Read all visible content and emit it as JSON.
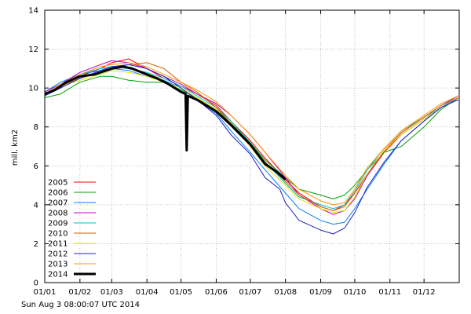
{
  "footer": {
    "timestamp": "Sun Aug  3 08:00:07 UTC 2014"
  },
  "chart_data": {
    "type": "line",
    "ylabel": "mill. km2",
    "xlabel": "",
    "title": "",
    "x_ticks": [
      "01/01",
      "01/02",
      "01/03",
      "01/04",
      "01/05",
      "01/06",
      "01/07",
      "01/08",
      "01/09",
      "01/10",
      "01/11",
      "01/12"
    ],
    "x_tick_days": [
      1,
      32,
      60,
      91,
      121,
      152,
      182,
      213,
      244,
      274,
      305,
      335
    ],
    "xlim": [
      1,
      366
    ],
    "ylim": [
      0,
      14
    ],
    "y_ticks": [
      0,
      2,
      4,
      6,
      8,
      10,
      12,
      14
    ],
    "grid": true,
    "legend_position": "bottom-left",
    "series": [
      {
        "name": "2005",
        "color": "#ff0000",
        "points": [
          [
            1,
            9.7
          ],
          [
            15,
            10.1
          ],
          [
            32,
            10.6
          ],
          [
            50,
            11.0
          ],
          [
            60,
            11.3
          ],
          [
            75,
            11.5
          ],
          [
            91,
            11.0
          ],
          [
            106,
            10.5
          ],
          [
            121,
            10.1
          ],
          [
            135,
            9.7
          ],
          [
            152,
            9.1
          ],
          [
            165,
            8.3
          ],
          [
            182,
            7.3
          ],
          [
            195,
            6.4
          ],
          [
            213,
            5.3
          ],
          [
            225,
            4.6
          ],
          [
            244,
            3.9
          ],
          [
            255,
            3.7
          ],
          [
            265,
            4.0
          ],
          [
            274,
            4.6
          ],
          [
            285,
            5.5
          ],
          [
            300,
            6.7
          ],
          [
            315,
            7.6
          ],
          [
            335,
            8.4
          ],
          [
            350,
            9.0
          ],
          [
            365,
            9.4
          ]
        ]
      },
      {
        "name": "2006",
        "color": "#00a000",
        "points": [
          [
            1,
            9.5
          ],
          [
            15,
            9.7
          ],
          [
            32,
            10.3
          ],
          [
            50,
            10.6
          ],
          [
            60,
            10.6
          ],
          [
            75,
            10.4
          ],
          [
            91,
            10.3
          ],
          [
            106,
            10.3
          ],
          [
            121,
            9.9
          ],
          [
            135,
            9.5
          ],
          [
            152,
            8.9
          ],
          [
            165,
            8.2
          ],
          [
            182,
            7.2
          ],
          [
            195,
            6.3
          ],
          [
            213,
            5.4
          ],
          [
            225,
            4.8
          ],
          [
            244,
            4.5
          ],
          [
            255,
            4.3
          ],
          [
            265,
            4.5
          ],
          [
            274,
            5.0
          ],
          [
            285,
            5.8
          ],
          [
            300,
            6.7
          ],
          [
            315,
            7.0
          ],
          [
            335,
            8.0
          ],
          [
            350,
            8.9
          ],
          [
            365,
            9.5
          ]
        ]
      },
      {
        "name": "2007",
        "color": "#0080ff",
        "points": [
          [
            1,
            9.8
          ],
          [
            15,
            10.3
          ],
          [
            32,
            10.7
          ],
          [
            50,
            10.9
          ],
          [
            60,
            11.0
          ],
          [
            75,
            10.9
          ],
          [
            91,
            10.6
          ],
          [
            106,
            10.4
          ],
          [
            121,
            10.0
          ],
          [
            135,
            9.4
          ],
          [
            152,
            8.7
          ],
          [
            165,
            7.8
          ],
          [
            182,
            6.7
          ],
          [
            195,
            5.8
          ],
          [
            213,
            4.6
          ],
          [
            225,
            3.8
          ],
          [
            244,
            3.2
          ],
          [
            255,
            3.0
          ],
          [
            265,
            3.1
          ],
          [
            274,
            3.8
          ],
          [
            285,
            4.8
          ],
          [
            300,
            6.1
          ],
          [
            315,
            7.3
          ],
          [
            335,
            8.3
          ],
          [
            350,
            9.0
          ],
          [
            365,
            9.5
          ]
        ]
      },
      {
        "name": "2008",
        "color": "#c000c0",
        "points": [
          [
            1,
            9.8
          ],
          [
            15,
            10.2
          ],
          [
            32,
            10.8
          ],
          [
            50,
            11.2
          ],
          [
            60,
            11.4
          ],
          [
            75,
            11.3
          ],
          [
            91,
            11.0
          ],
          [
            106,
            10.6
          ],
          [
            121,
            10.2
          ],
          [
            135,
            9.7
          ],
          [
            152,
            9.2
          ],
          [
            165,
            8.6
          ],
          [
            182,
            7.6
          ],
          [
            195,
            6.7
          ],
          [
            213,
            5.4
          ],
          [
            225,
            4.5
          ],
          [
            244,
            3.8
          ],
          [
            255,
            3.5
          ],
          [
            265,
            3.7
          ],
          [
            274,
            4.3
          ],
          [
            285,
            5.5
          ],
          [
            300,
            6.8
          ],
          [
            315,
            7.7
          ],
          [
            335,
            8.5
          ],
          [
            350,
            9.1
          ],
          [
            365,
            9.6
          ]
        ]
      },
      {
        "name": "2009",
        "color": "#00c0c0",
        "points": [
          [
            1,
            9.6
          ],
          [
            15,
            10.2
          ],
          [
            32,
            10.7
          ],
          [
            50,
            11.0
          ],
          [
            60,
            11.1
          ],
          [
            75,
            11.0
          ],
          [
            91,
            10.8
          ],
          [
            106,
            10.5
          ],
          [
            121,
            10.1
          ],
          [
            135,
            9.6
          ],
          [
            152,
            9.0
          ],
          [
            165,
            8.3
          ],
          [
            182,
            7.2
          ],
          [
            195,
            6.2
          ],
          [
            213,
            5.1
          ],
          [
            225,
            4.4
          ],
          [
            244,
            4.0
          ],
          [
            255,
            3.8
          ],
          [
            265,
            4.0
          ],
          [
            274,
            4.7
          ],
          [
            285,
            5.8
          ],
          [
            300,
            6.9
          ],
          [
            315,
            7.8
          ],
          [
            335,
            8.5
          ],
          [
            350,
            9.0
          ],
          [
            365,
            9.5
          ]
        ]
      },
      {
        "name": "2010",
        "color": "#d06000",
        "points": [
          [
            1,
            9.7
          ],
          [
            15,
            10.1
          ],
          [
            32,
            10.5
          ],
          [
            50,
            10.8
          ],
          [
            60,
            11.0
          ],
          [
            75,
            11.2
          ],
          [
            91,
            11.3
          ],
          [
            106,
            11.0
          ],
          [
            121,
            10.3
          ],
          [
            135,
            9.8
          ],
          [
            152,
            9.0
          ],
          [
            165,
            8.2
          ],
          [
            182,
            7.1
          ],
          [
            195,
            6.2
          ],
          [
            213,
            5.2
          ],
          [
            225,
            4.5
          ],
          [
            244,
            3.9
          ],
          [
            255,
            3.7
          ],
          [
            265,
            3.9
          ],
          [
            274,
            4.6
          ],
          [
            285,
            5.6
          ],
          [
            300,
            6.8
          ],
          [
            315,
            7.7
          ],
          [
            335,
            8.5
          ],
          [
            350,
            9.1
          ],
          [
            365,
            9.5
          ]
        ]
      },
      {
        "name": "2011",
        "color": "#e0e000",
        "points": [
          [
            1,
            9.6
          ],
          [
            15,
            10.1
          ],
          [
            32,
            10.4
          ],
          [
            50,
            10.7
          ],
          [
            60,
            10.9
          ],
          [
            75,
            10.8
          ],
          [
            91,
            10.6
          ],
          [
            106,
            10.3
          ],
          [
            121,
            10.0
          ],
          [
            135,
            9.5
          ],
          [
            152,
            8.9
          ],
          [
            165,
            8.1
          ],
          [
            182,
            7.0
          ],
          [
            195,
            6.0
          ],
          [
            213,
            5.0
          ],
          [
            225,
            4.3
          ],
          [
            244,
            3.8
          ],
          [
            255,
            3.6
          ],
          [
            265,
            3.7
          ],
          [
            274,
            4.4
          ],
          [
            285,
            5.6
          ],
          [
            300,
            6.8
          ],
          [
            315,
            7.6
          ],
          [
            335,
            8.4
          ],
          [
            350,
            9.0
          ],
          [
            365,
            9.4
          ]
        ]
      },
      {
        "name": "2012",
        "color": "#2020c0",
        "points": [
          [
            1,
            9.6
          ],
          [
            15,
            10.0
          ],
          [
            32,
            10.5
          ],
          [
            50,
            10.9
          ],
          [
            60,
            11.1
          ],
          [
            75,
            11.2
          ],
          [
            91,
            11.0
          ],
          [
            106,
            10.6
          ],
          [
            121,
            10.0
          ],
          [
            135,
            9.4
          ],
          [
            152,
            8.6
          ],
          [
            165,
            7.6
          ],
          [
            182,
            6.6
          ],
          [
            195,
            5.4
          ],
          [
            208,
            4.8
          ],
          [
            213,
            4.1
          ],
          [
            225,
            3.2
          ],
          [
            244,
            2.7
          ],
          [
            255,
            2.5
          ],
          [
            265,
            2.8
          ],
          [
            274,
            3.6
          ],
          [
            285,
            4.9
          ],
          [
            300,
            6.2
          ],
          [
            315,
            7.3
          ],
          [
            335,
            8.3
          ],
          [
            350,
            9.0
          ],
          [
            365,
            9.4
          ]
        ]
      },
      {
        "name": "2013",
        "color": "#ff9900",
        "points": [
          [
            1,
            9.7
          ],
          [
            15,
            10.2
          ],
          [
            32,
            10.7
          ],
          [
            50,
            11.1
          ],
          [
            60,
            11.2
          ],
          [
            75,
            11.3
          ],
          [
            91,
            11.1
          ],
          [
            106,
            10.7
          ],
          [
            121,
            10.3
          ],
          [
            135,
            9.9
          ],
          [
            152,
            9.3
          ],
          [
            165,
            8.6
          ],
          [
            182,
            7.6
          ],
          [
            195,
            6.7
          ],
          [
            213,
            5.5
          ],
          [
            225,
            4.8
          ],
          [
            244,
            4.2
          ],
          [
            255,
            4.0
          ],
          [
            265,
            4.1
          ],
          [
            274,
            4.8
          ],
          [
            285,
            5.9
          ],
          [
            300,
            6.9
          ],
          [
            315,
            7.8
          ],
          [
            335,
            8.6
          ],
          [
            350,
            9.2
          ],
          [
            365,
            9.6
          ]
        ]
      },
      {
        "name": "2014",
        "color": "#000000",
        "points": [
          [
            1,
            9.7
          ],
          [
            10,
            9.9
          ],
          [
            20,
            10.3
          ],
          [
            32,
            10.6
          ],
          [
            45,
            10.7
          ],
          [
            55,
            10.9
          ],
          [
            60,
            11.0
          ],
          [
            70,
            11.1
          ],
          [
            78,
            11.0
          ],
          [
            91,
            10.7
          ],
          [
            100,
            10.5
          ],
          [
            110,
            10.2
          ],
          [
            121,
            9.8
          ],
          [
            125,
            9.7
          ],
          [
            126,
            6.8
          ],
          [
            127,
            9.6
          ],
          [
            135,
            9.4
          ],
          [
            152,
            8.8
          ],
          [
            165,
            8.1
          ],
          [
            182,
            7.1
          ],
          [
            195,
            6.1
          ],
          [
            205,
            5.7
          ],
          [
            213,
            5.3
          ]
        ]
      }
    ]
  }
}
